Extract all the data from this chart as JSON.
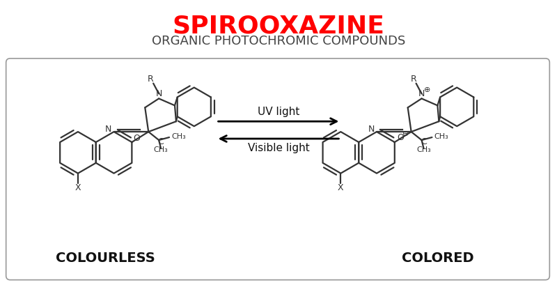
{
  "title": "SPIROOXAZINE",
  "subtitle": "ORGANIC PHOTOCHROMIC COMPOUNDS",
  "title_color": "#ff0000",
  "subtitle_color": "#444444",
  "title_fontsize": 26,
  "subtitle_fontsize": 13,
  "label_left": "COLOURLESS",
  "label_right": "COLORED",
  "label_fontsize": 14,
  "arrow_label_top": "UV light",
  "arrow_label_bottom": "Visible light",
  "arrow_label_fontsize": 11,
  "bg_color": "#ffffff",
  "line_color": "#333333",
  "figsize": [
    8.0,
    4.09
  ],
  "dpi": 100
}
